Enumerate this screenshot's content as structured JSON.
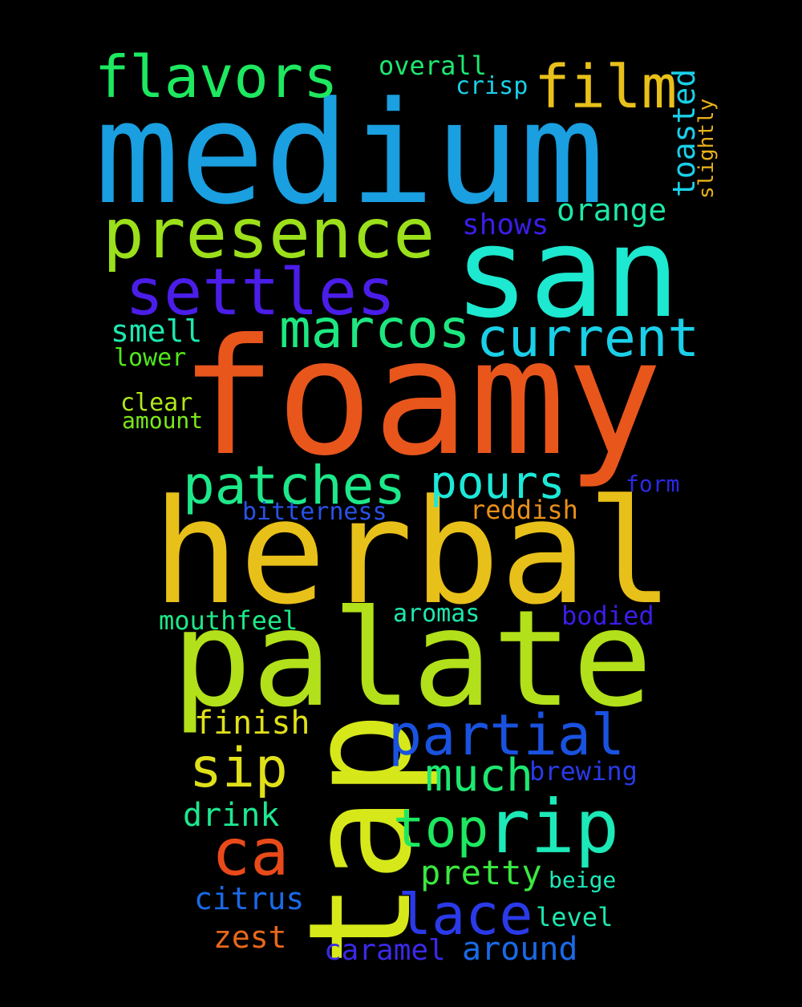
{
  "words": [
    {
      "text": "medium",
      "color": "#1a9fe0"
    },
    {
      "text": "foamy",
      "color": "#e8561c"
    },
    {
      "text": "herbal",
      "color": "#e8c01a"
    },
    {
      "text": "palate",
      "color": "#b2e01a"
    },
    {
      "text": "san",
      "color": "#1de8d0"
    },
    {
      "text": "tap",
      "color": "#d6e81a"
    },
    {
      "text": "presence",
      "color": "#9be01a"
    },
    {
      "text": "flavors",
      "color": "#1de860"
    },
    {
      "text": "settles",
      "color": "#4a1de8"
    },
    {
      "text": "film",
      "color": "#e8c01a"
    },
    {
      "text": "marcos",
      "color": "#1de880"
    },
    {
      "text": "current",
      "color": "#1ad0e8"
    },
    {
      "text": "patches",
      "color": "#1de88a"
    },
    {
      "text": "pours",
      "color": "#1de8d8"
    },
    {
      "text": "partial",
      "color": "#1a52e0"
    },
    {
      "text": "rip",
      "color": "#1de8b8"
    },
    {
      "text": "top",
      "color": "#1de860"
    },
    {
      "text": "sip",
      "color": "#e0e01a"
    },
    {
      "text": "ca",
      "color": "#e84a1a"
    },
    {
      "text": "much",
      "color": "#1de870"
    },
    {
      "text": "lace",
      "color": "#2a3ae8"
    },
    {
      "text": "pretty",
      "color": "#3ae840"
    },
    {
      "text": "orange",
      "color": "#1de8a8"
    },
    {
      "text": "shows",
      "color": "#3a1de8"
    },
    {
      "text": "smell",
      "color": "#1de8b0"
    },
    {
      "text": "lower",
      "color": "#50e81a"
    },
    {
      "text": "clear",
      "color": "#b0e81a"
    },
    {
      "text": "amount",
      "color": "#7ae81a"
    },
    {
      "text": "overall",
      "color": "#1de870"
    },
    {
      "text": "crisp",
      "color": "#1ad0e8"
    },
    {
      "text": "toasted",
      "color": "#1ad0e8"
    },
    {
      "text": "slightly",
      "color": "#e8b01a"
    },
    {
      "text": "form",
      "color": "#2a2ae8"
    },
    {
      "text": "bitterness",
      "color": "#2a52e8"
    },
    {
      "text": "reddish",
      "color": "#e8901a"
    },
    {
      "text": "mouthfeel",
      "color": "#1de888"
    },
    {
      "text": "aromas",
      "color": "#1de8b0"
    },
    {
      "text": "bodied",
      "color": "#3a1de8"
    },
    {
      "text": "finish",
      "color": "#e0e01a"
    },
    {
      "text": "brewing",
      "color": "#2a3ae8"
    },
    {
      "text": "drink",
      "color": "#1de890"
    },
    {
      "text": "citrus",
      "color": "#1a6ae8"
    },
    {
      "text": "beige",
      "color": "#1de8b8"
    },
    {
      "text": "level",
      "color": "#1de8b0"
    },
    {
      "text": "zest",
      "color": "#e8681a"
    },
    {
      "text": "caramel",
      "color": "#3a2ae8"
    },
    {
      "text": "around",
      "color": "#1a6ae8"
    }
  ]
}
